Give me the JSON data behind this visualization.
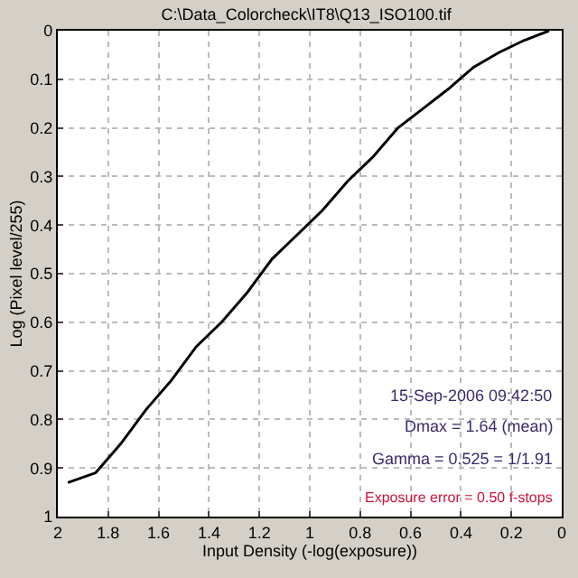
{
  "chart_data": {
    "type": "line",
    "title": "C:\\Data_Colorcheck\\IT8\\Q13_ISO100.tif",
    "xlabel": "Input Density (-log(exposure))",
    "ylabel": "Log (Pixel level/255)",
    "x": [
      1.96,
      1.85,
      1.75,
      1.65,
      1.55,
      1.45,
      1.35,
      1.25,
      1.15,
      1.05,
      0.95,
      0.85,
      0.75,
      0.65,
      0.55,
      0.45,
      0.35,
      0.25,
      0.15,
      0.05
    ],
    "series": [
      {
        "color": "#000000",
        "values": [
          0.93,
          0.91,
          0.85,
          0.78,
          0.72,
          0.65,
          0.6,
          0.54,
          0.47,
          0.42,
          0.37,
          0.31,
          0.26,
          0.2,
          0.16,
          0.12,
          0.075,
          0.045,
          0.02,
          0.0
        ]
      }
    ],
    "xlim": [
      2,
      0
    ],
    "xticks": [
      2,
      1.8,
      1.6,
      1.4,
      1.2,
      1,
      0.8,
      0.6,
      0.4,
      0.2,
      0
    ],
    "ylim": [
      1,
      0
    ],
    "yticks": [
      0,
      0.1,
      0.2,
      0.3,
      0.4,
      0.5,
      0.6,
      0.7,
      0.8,
      0.9,
      1
    ],
    "grid": true,
    "marker": "none",
    "line_style": "solid",
    "annotations": [
      "15-Sep-2006 09:42:50",
      "Dmax = 1.64 (mean)",
      "Gamma = 0.525 = 1/1.91",
      "Exposure error = 0.50 f-stops"
    ]
  }
}
